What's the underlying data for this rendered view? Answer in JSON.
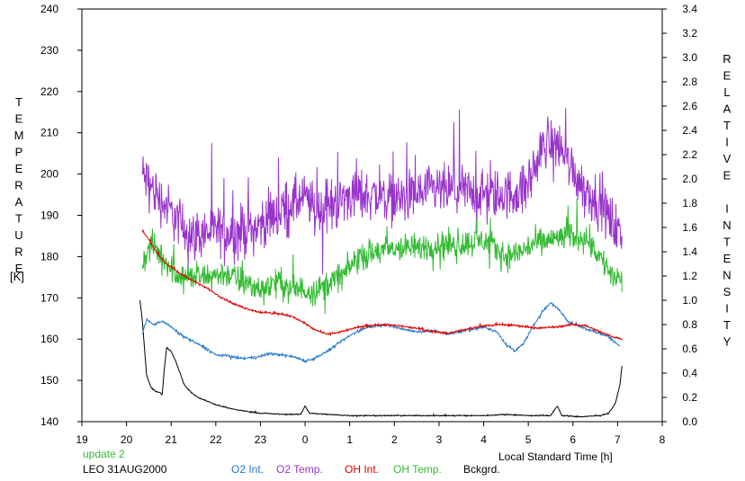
{
  "chart_data": {
    "type": "line",
    "ylabel_left_letters": [
      "T",
      "E",
      "M",
      "P",
      "E",
      "R",
      "A",
      "T",
      "U",
      "R",
      "E"
    ],
    "ylabel_left_unit": "[K]",
    "ylabel_right_letters": [
      "R",
      "E",
      "L",
      "A",
      "T",
      "I",
      "V",
      "E",
      " ",
      "I",
      "N",
      "T",
      "E",
      "N",
      "S",
      "I",
      "T",
      "Y"
    ],
    "xlabel": "Local Standard Time [h]",
    "x_ticks": [
      "19",
      "20",
      "21",
      "22",
      "23",
      "0",
      "1",
      "2",
      "3",
      "4",
      "5",
      "6",
      "7",
      "8"
    ],
    "y_left_ticks": [
      "140",
      "150",
      "160",
      "170",
      "180",
      "190",
      "200",
      "210",
      "220",
      "230",
      "240"
    ],
    "y_right_ticks": [
      "0.0",
      "0.2",
      "0.4",
      "0.6",
      "0.8",
      "1.0",
      "1.2",
      "1.4",
      "1.6",
      "1.8",
      "2.0",
      "2.2",
      "2.4",
      "2.6",
      "2.8",
      "3.0",
      "3.2",
      "3.4"
    ],
    "xlim": [
      19,
      32
    ],
    "ylim_left": [
      140,
      240
    ],
    "ylim_right": [
      0,
      3.4
    ],
    "grid": false,
    "legend_placement": "bottom",
    "series": [
      {
        "name": "O2 Temp.",
        "axis": "left",
        "color": "#9933cc",
        "noise": 9,
        "points": [
          [
            20.35,
            200
          ],
          [
            20.6,
            196
          ],
          [
            20.9,
            192
          ],
          [
            21.2,
            188
          ],
          [
            21.5,
            185
          ],
          [
            21.8,
            186
          ],
          [
            22.1,
            186
          ],
          [
            22.5,
            186
          ],
          [
            22.9,
            187
          ],
          [
            23.3,
            190
          ],
          [
            23.7,
            193
          ],
          [
            24.0,
            194
          ],
          [
            24.3,
            191
          ],
          [
            24.7,
            193
          ],
          [
            25.0,
            195
          ],
          [
            25.5,
            195
          ],
          [
            26.0,
            194
          ],
          [
            26.5,
            195
          ],
          [
            27.0,
            196
          ],
          [
            27.5,
            196
          ],
          [
            28.0,
            195
          ],
          [
            28.5,
            195
          ],
          [
            28.9,
            196
          ],
          [
            29.2,
            203
          ],
          [
            29.4,
            208
          ],
          [
            29.7,
            207
          ],
          [
            30.0,
            201
          ],
          [
            30.3,
            196
          ],
          [
            30.6,
            193
          ],
          [
            30.9,
            188
          ],
          [
            31.1,
            184
          ]
        ]
      },
      {
        "name": "OH Temp.",
        "axis": "left",
        "color": "#33bb33",
        "noise": 5,
        "points": [
          [
            20.35,
            178
          ],
          [
            20.55,
            183
          ],
          [
            20.8,
            180
          ],
          [
            21.1,
            176
          ],
          [
            21.4,
            175
          ],
          [
            21.8,
            175
          ],
          [
            22.2,
            176
          ],
          [
            22.6,
            174
          ],
          [
            23.0,
            172
          ],
          [
            23.4,
            174
          ],
          [
            23.7,
            172
          ],
          [
            24.0,
            172
          ],
          [
            24.3,
            172
          ],
          [
            24.6,
            174
          ],
          [
            24.9,
            176
          ],
          [
            25.2,
            180
          ],
          [
            25.6,
            181
          ],
          [
            26.0,
            182
          ],
          [
            26.5,
            182
          ],
          [
            27.0,
            183
          ],
          [
            27.5,
            183
          ],
          [
            28.0,
            184
          ],
          [
            28.5,
            180
          ],
          [
            28.8,
            181
          ],
          [
            29.1,
            183
          ],
          [
            29.5,
            184
          ],
          [
            29.9,
            185
          ],
          [
            30.3,
            185
          ],
          [
            30.6,
            180
          ],
          [
            30.9,
            175
          ],
          [
            31.1,
            174
          ]
        ]
      },
      {
        "name": "OH Int.",
        "axis": "right",
        "color": "#dd0000",
        "noise": 0.012,
        "points": [
          [
            20.35,
            1.58
          ],
          [
            20.5,
            1.5
          ],
          [
            20.7,
            1.38
          ],
          [
            20.9,
            1.3
          ],
          [
            21.2,
            1.22
          ],
          [
            21.5,
            1.16
          ],
          [
            21.8,
            1.1
          ],
          [
            22.1,
            1.03
          ],
          [
            22.4,
            0.97
          ],
          [
            22.7,
            0.93
          ],
          [
            23.0,
            0.9
          ],
          [
            23.4,
            0.89
          ],
          [
            23.7,
            0.87
          ],
          [
            24.0,
            0.81
          ],
          [
            24.2,
            0.76
          ],
          [
            24.5,
            0.72
          ],
          [
            24.8,
            0.74
          ],
          [
            25.1,
            0.77
          ],
          [
            25.4,
            0.79
          ],
          [
            25.8,
            0.8
          ],
          [
            26.1,
            0.79
          ],
          [
            26.5,
            0.77
          ],
          [
            26.9,
            0.74
          ],
          [
            27.2,
            0.73
          ],
          [
            27.6,
            0.76
          ],
          [
            28.0,
            0.79
          ],
          [
            28.4,
            0.8
          ],
          [
            28.8,
            0.79
          ],
          [
            29.2,
            0.77
          ],
          [
            29.6,
            0.78
          ],
          [
            30.0,
            0.8
          ],
          [
            30.3,
            0.79
          ],
          [
            30.6,
            0.74
          ],
          [
            30.9,
            0.7
          ],
          [
            31.1,
            0.68
          ]
        ]
      },
      {
        "name": "O2 Int.",
        "axis": "right",
        "color": "#2277cc",
        "noise": 0.015,
        "points": [
          [
            20.35,
            0.72
          ],
          [
            20.45,
            0.84
          ],
          [
            20.6,
            0.8
          ],
          [
            20.8,
            0.83
          ],
          [
            21.0,
            0.78
          ],
          [
            21.2,
            0.72
          ],
          [
            21.5,
            0.66
          ],
          [
            21.8,
            0.6
          ],
          [
            22.0,
            0.55
          ],
          [
            22.3,
            0.54
          ],
          [
            22.6,
            0.52
          ],
          [
            22.9,
            0.53
          ],
          [
            23.2,
            0.56
          ],
          [
            23.5,
            0.55
          ],
          [
            23.8,
            0.53
          ],
          [
            24.0,
            0.5
          ],
          [
            24.2,
            0.52
          ],
          [
            24.5,
            0.58
          ],
          [
            24.8,
            0.66
          ],
          [
            25.1,
            0.73
          ],
          [
            25.4,
            0.78
          ],
          [
            25.8,
            0.8
          ],
          [
            26.1,
            0.77
          ],
          [
            26.5,
            0.74
          ],
          [
            26.9,
            0.75
          ],
          [
            27.2,
            0.72
          ],
          [
            27.6,
            0.75
          ],
          [
            28.0,
            0.78
          ],
          [
            28.3,
            0.74
          ],
          [
            28.5,
            0.64
          ],
          [
            28.7,
            0.58
          ],
          [
            28.9,
            0.65
          ],
          [
            29.1,
            0.78
          ],
          [
            29.3,
            0.9
          ],
          [
            29.5,
            0.98
          ],
          [
            29.7,
            0.92
          ],
          [
            29.9,
            0.82
          ],
          [
            30.2,
            0.78
          ],
          [
            30.5,
            0.74
          ],
          [
            30.8,
            0.7
          ],
          [
            31.05,
            0.62
          ]
        ]
      },
      {
        "name": "Bckgrd.",
        "axis": "right",
        "color": "#000000",
        "noise": 0.006,
        "points": [
          [
            20.3,
            1.0
          ],
          [
            20.35,
            0.85
          ],
          [
            20.45,
            0.38
          ],
          [
            20.55,
            0.28
          ],
          [
            20.65,
            0.25
          ],
          [
            20.75,
            0.24
          ],
          [
            20.8,
            0.22
          ],
          [
            20.85,
            0.45
          ],
          [
            20.9,
            0.61
          ],
          [
            21.0,
            0.58
          ],
          [
            21.1,
            0.5
          ],
          [
            21.2,
            0.4
          ],
          [
            21.3,
            0.3
          ],
          [
            21.45,
            0.24
          ],
          [
            21.6,
            0.2
          ],
          [
            21.8,
            0.17
          ],
          [
            22.0,
            0.14
          ],
          [
            22.3,
            0.11
          ],
          [
            22.6,
            0.09
          ],
          [
            23.0,
            0.07
          ],
          [
            23.5,
            0.06
          ],
          [
            23.9,
            0.06
          ],
          [
            24.0,
            0.13
          ],
          [
            24.1,
            0.07
          ],
          [
            24.5,
            0.06
          ],
          [
            25.0,
            0.05
          ],
          [
            25.5,
            0.05
          ],
          [
            26.0,
            0.05
          ],
          [
            26.5,
            0.05
          ],
          [
            27.0,
            0.05
          ],
          [
            27.5,
            0.05
          ],
          [
            28.0,
            0.05
          ],
          [
            28.5,
            0.06
          ],
          [
            29.0,
            0.05
          ],
          [
            29.5,
            0.05
          ],
          [
            29.65,
            0.13
          ],
          [
            29.75,
            0.05
          ],
          [
            30.2,
            0.04
          ],
          [
            30.6,
            0.05
          ],
          [
            30.8,
            0.07
          ],
          [
            30.95,
            0.15
          ],
          [
            31.05,
            0.3
          ],
          [
            31.1,
            0.46
          ]
        ]
      }
    ]
  },
  "footer": {
    "status": "update 2",
    "status_color": "#33bb33",
    "station": "LEO 31AUG2000",
    "legend": [
      {
        "label": "O2 Int.",
        "color": "#2277cc"
      },
      {
        "label": "O2 Temp.",
        "color": "#9933cc"
      },
      {
        "label": "OH Int.",
        "color": "#dd0000"
      },
      {
        "label": "OH Temp.",
        "color": "#33bb33"
      },
      {
        "label": "Bckgrd.",
        "color": "#000000"
      }
    ]
  }
}
